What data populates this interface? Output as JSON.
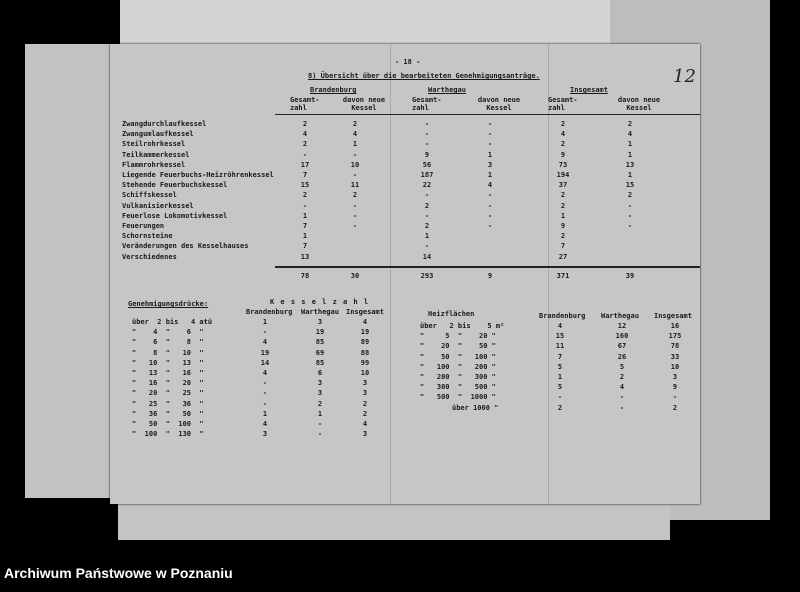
{
  "page_number": "- 18 -",
  "folio": "12",
  "title": "8) Übersicht über die bearbeiteten Genehmigungsanträge.",
  "regions": [
    "Brandenburg",
    "Warthegau",
    "Insgesamt"
  ],
  "col_total": "Gesamt-zahl",
  "col_new": "davon neue Kessel",
  "rows": [
    {
      "label": "Zwangdurchlaufkessel",
      "v": [
        "2",
        "2",
        "-",
        "-",
        "2",
        "2"
      ]
    },
    {
      "label": "Zwangumlaufkessel",
      "v": [
        "4",
        "4",
        "-",
        "-",
        "4",
        "4"
      ]
    },
    {
      "label": "Steilrohrkessel",
      "v": [
        "2",
        "1",
        "-",
        "-",
        "2",
        "1"
      ]
    },
    {
      "label": "Teilkammerkessel",
      "v": [
        "-",
        "-",
        "9",
        "1",
        "9",
        "1"
      ]
    },
    {
      "label": "Flammrohrkessel",
      "v": [
        "17",
        "10",
        "56",
        "3",
        "73",
        "13"
      ]
    },
    {
      "label": "Liegende Feuerbuchs-Heizröhrenkessel",
      "v": [
        "7",
        "-",
        "187",
        "1",
        "194",
        "1"
      ]
    },
    {
      "label": "Stehende Feuerbuchskessel",
      "v": [
        "15",
        "11",
        "22",
        "4",
        "37",
        "15"
      ]
    },
    {
      "label": "Schiffskessel",
      "v": [
        "2",
        "2",
        "-",
        "-",
        "2",
        "2"
      ]
    },
    {
      "label": "Vulkanisierkessel",
      "v": [
        "-",
        "-",
        "2",
        "-",
        "2",
        "-"
      ]
    },
    {
      "label": "Feuerlose Lokomotivkessel",
      "v": [
        "1",
        "-",
        "-",
        "-",
        "1",
        "-"
      ]
    },
    {
      "label": "Feuerungen",
      "v": [
        "7",
        "-",
        "2",
        "-",
        "9",
        "-"
      ]
    },
    {
      "label": "Schornsteine",
      "v": [
        "1",
        "",
        "1",
        "",
        "2",
        ""
      ]
    },
    {
      "label": "Veränderungen des Kesselhauses",
      "v": [
        "7",
        "",
        "-",
        "",
        "7",
        ""
      ]
    },
    {
      "label": "Verschiedenes",
      "v": [
        "13",
        "",
        "14",
        "",
        "27",
        ""
      ]
    }
  ],
  "totals": [
    "78",
    "30",
    "293",
    "9",
    "371",
    "39"
  ],
  "pressure": {
    "heading": "Genehmigungsdrücke:",
    "group_header": "K e s s e l z a h l",
    "cols": [
      "Brandenburg",
      "Warthegau",
      "Insgesamt"
    ],
    "rows": [
      {
        "range": "über  2 bis   4 atü",
        "v": [
          "1",
          "3",
          "4"
        ]
      },
      {
        "range": "\"    4  \"    6  \"",
        "v": [
          "-",
          "19",
          "19"
        ]
      },
      {
        "range": "\"    6  \"    8  \"",
        "v": [
          "4",
          "85",
          "89"
        ]
      },
      {
        "range": "\"    8  \"   10  \"",
        "v": [
          "19",
          "69",
          "88"
        ]
      },
      {
        "range": "\"   10  \"   13  \"",
        "v": [
          "14",
          "85",
          "99"
        ]
      },
      {
        "range": "\"   13  \"   16  \"",
        "v": [
          "4",
          "6",
          "10"
        ]
      },
      {
        "range": "\"   16  \"   20  \"",
        "v": [
          "-",
          "3",
          "3"
        ]
      },
      {
        "range": "\"   20  \"   25  \"",
        "v": [
          "-",
          "3",
          "3"
        ]
      },
      {
        "range": "\"   25  \"   36  \"",
        "v": [
          "-",
          "2",
          "2"
        ]
      },
      {
        "range": "\"   36  \"   50  \"",
        "v": [
          "1",
          "1",
          "2"
        ]
      },
      {
        "range": "\"   50  \"  100  \"",
        "v": [
          "4",
          "-",
          "4"
        ]
      },
      {
        "range": "\"  100  \"  130  \"",
        "v": [
          "3",
          "-",
          "3"
        ]
      }
    ]
  },
  "surface": {
    "heading": "Heizflächen",
    "cols": [
      "Brandenburg",
      "Warthegau",
      "Insgesamt"
    ],
    "rows": [
      {
        "range": "über   2 bis    5 m²",
        "v": [
          "4",
          "12",
          "16"
        ]
      },
      {
        "range": "\"     5  \"    20 \"",
        "v": [
          "15",
          "160",
          "175"
        ]
      },
      {
        "range": "\"    20  \"    50 \"",
        "v": [
          "11",
          "67",
          "78"
        ]
      },
      {
        "range": "\"    50  \"   100 \"",
        "v": [
          "7",
          "26",
          "33"
        ]
      },
      {
        "range": "\"   100  \"   200 \"",
        "v": [
          "5",
          "5",
          "10"
        ]
      },
      {
        "range": "\"   200  \"   300 \"",
        "v": [
          "1",
          "2",
          "3"
        ]
      },
      {
        "range": "\"   300  \"   500 \"",
        "v": [
          "5",
          "4",
          "9"
        ]
      },
      {
        "range": "\"   500  \"  1000 \"",
        "v": [
          "-",
          "-",
          "-"
        ]
      },
      {
        "range": "über 1000 \"",
        "v": [
          "2",
          "-",
          "2"
        ]
      }
    ]
  },
  "footer": "Archiwum Państwowe w Poznaniu"
}
